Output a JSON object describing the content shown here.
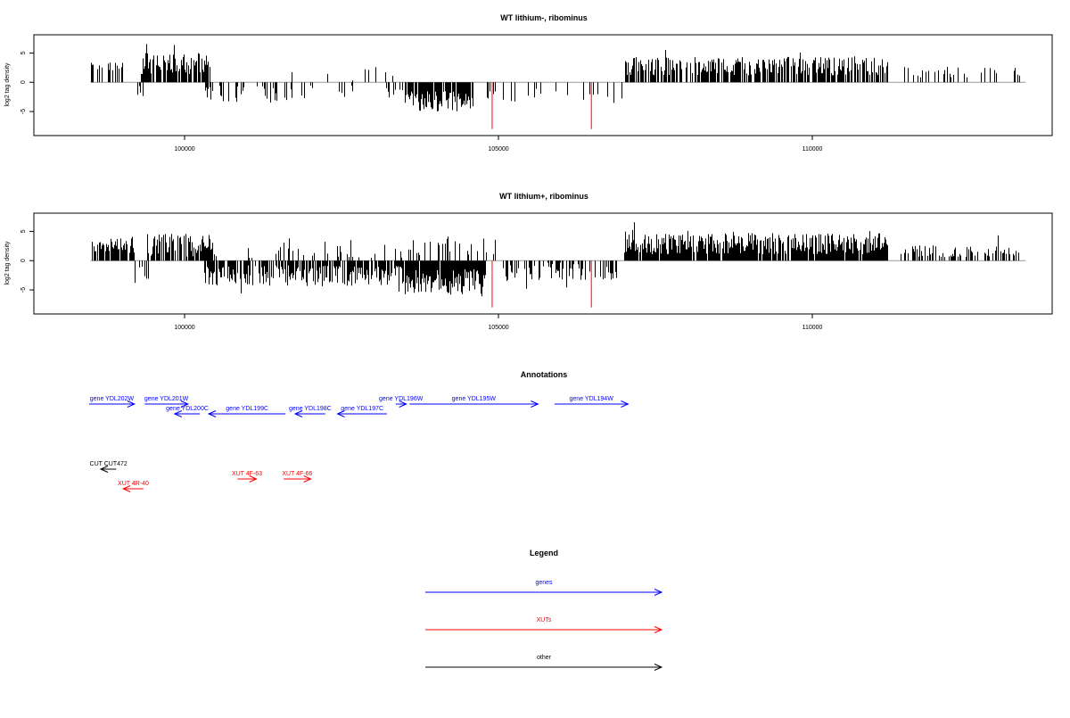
{
  "chart_data": [
    {
      "type": "bar",
      "title": "WT lithium-, ribominus",
      "ylabel": "log2 tag density",
      "xlim": [
        98000,
        113800
      ],
      "ylim": [
        -8.5,
        7.5
      ],
      "xticks": [
        100000,
        105000,
        110000
      ],
      "xtick_labels": [
        "100000",
        "105000",
        "110000"
      ],
      "yticks": [
        5,
        0,
        -5
      ],
      "ytick_labels": [
        "5",
        "0",
        "-5"
      ],
      "baseline": {
        "from": 98500,
        "to": 113400,
        "y": 0
      },
      "highlight_color": "#ff0000",
      "highlights": [
        {
          "x": 104900,
          "y": -8
        },
        {
          "x": 106480,
          "y": -8
        }
      ],
      "segments": [
        {
          "from": 98500,
          "to": 99100,
          "sign": 1,
          "mean": 2.5,
          "amp": 1.0,
          "density": 0.35
        },
        {
          "from": 99100,
          "to": 99400,
          "sign": -1,
          "mean": 1.5,
          "amp": 1.0,
          "density": 0.25
        },
        {
          "from": 99300,
          "to": 100400,
          "sign": 1,
          "mean": 3.2,
          "amp": 1.8,
          "density": 0.85
        },
        {
          "from": 100300,
          "to": 101700,
          "sign": -1,
          "mean": 2.0,
          "amp": 1.5,
          "density": 0.35
        },
        {
          "from": 101700,
          "to": 103500,
          "sign": 1,
          "mean": 1.5,
          "amp": 1.5,
          "density": 0.08
        },
        {
          "from": 101700,
          "to": 103500,
          "sign": -1,
          "mean": 1.5,
          "amp": 1.2,
          "density": 0.1
        },
        {
          "from": 103500,
          "to": 104600,
          "sign": -1,
          "mean": 3.3,
          "amp": 1.8,
          "density": 0.85
        },
        {
          "from": 104600,
          "to": 106700,
          "sign": -1,
          "mean": 2.2,
          "amp": 1.2,
          "density": 0.12
        },
        {
          "from": 106700,
          "to": 107000,
          "sign": -1,
          "mean": 2.5,
          "amp": 1.5,
          "density": 0.3
        },
        {
          "from": 107000,
          "to": 111200,
          "sign": 1,
          "mean": 2.8,
          "amp": 1.6,
          "density": 0.75
        },
        {
          "from": 111200,
          "to": 113300,
          "sign": 1,
          "mean": 1.8,
          "amp": 1.0,
          "density": 0.15
        }
      ]
    },
    {
      "type": "bar",
      "title": "WT lithium+, ribominus",
      "ylabel": "log2 tag density",
      "xlim": [
        98000,
        113800
      ],
      "ylim": [
        -8.5,
        7.5
      ],
      "xticks": [
        100000,
        105000,
        110000
      ],
      "xtick_labels": [
        "100000",
        "105000",
        "110000"
      ],
      "yticks": [
        5,
        0,
        -5
      ],
      "ytick_labels": [
        "5",
        "0",
        "-5"
      ],
      "baseline": {
        "from": 98500,
        "to": 113400,
        "y": 0
      },
      "highlight_color": "#ff0000",
      "highlights": [
        {
          "x": 104900,
          "y": -8
        },
        {
          "x": 106480,
          "y": -8
        }
      ],
      "segments": [
        {
          "from": 98500,
          "to": 99200,
          "sign": 1,
          "mean": 2.5,
          "amp": 1.3,
          "density": 0.7
        },
        {
          "from": 99200,
          "to": 99600,
          "sign": -1,
          "mean": 2.0,
          "amp": 1.8,
          "density": 0.3
        },
        {
          "from": 99400,
          "to": 100500,
          "sign": 1,
          "mean": 2.6,
          "amp": 2.0,
          "density": 0.75
        },
        {
          "from": 100300,
          "to": 103500,
          "sign": -1,
          "mean": 2.6,
          "amp": 1.8,
          "density": 0.75
        },
        {
          "from": 101000,
          "to": 103500,
          "sign": 1,
          "mean": 1.8,
          "amp": 1.5,
          "density": 0.15
        },
        {
          "from": 103500,
          "to": 104800,
          "sign": -1,
          "mean": 3.6,
          "amp": 2.2,
          "density": 0.95
        },
        {
          "from": 103500,
          "to": 105000,
          "sign": 1,
          "mean": 2.3,
          "amp": 1.6,
          "density": 0.25
        },
        {
          "from": 105000,
          "to": 106900,
          "sign": -1,
          "mean": 1.8,
          "amp": 1.5,
          "density": 0.45
        },
        {
          "from": 107000,
          "to": 111200,
          "sign": 1,
          "mean": 2.9,
          "amp": 1.8,
          "density": 0.92
        },
        {
          "from": 111400,
          "to": 113300,
          "sign": 1,
          "mean": 1.6,
          "amp": 1.0,
          "density": 0.5
        }
      ]
    }
  ],
  "annotations": {
    "title": "Annotations",
    "items": [
      {
        "label": "gene YDL202W",
        "kind": "gene",
        "from": 99285,
        "to": 100985,
        "dir": 1,
        "row": 0
      },
      {
        "label": "gene YDL201W",
        "kind": "gene",
        "from": 101370,
        "to": 102990,
        "dir": 1,
        "row": 0
      },
      {
        "label": "gene YDL200C",
        "kind": "gene",
        "from": 102490,
        "to": 103440,
        "dir": -1,
        "row": 1
      },
      {
        "label": "gene YDL199C",
        "kind": "gene",
        "from": 103770,
        "to": 106650,
        "dir": -1,
        "row": 1
      },
      {
        "label": "gene YDL198C",
        "kind": "gene",
        "from": 107010,
        "to": 108140,
        "dir": -1,
        "row": 1
      },
      {
        "label": "gene YDL197C",
        "kind": "gene",
        "from": 108600,
        "to": 110450,
        "dir": -1,
        "row": 1
      },
      {
        "label": "gene YDL196W",
        "kind": "gene",
        "from": 110780,
        "to": 111180,
        "dir": 1,
        "row": 0
      },
      {
        "label": "gene YDL195W",
        "kind": "gene",
        "from": 111300,
        "to": 116120,
        "dir": 1,
        "row": 0
      },
      {
        "label": "gene YDL194W",
        "kind": "gene",
        "from": 116740,
        "to": 119500,
        "dir": 1,
        "row": 0
      },
      {
        "label": "CUT CUT472",
        "kind": "other",
        "from": 99720,
        "to": 100300,
        "dir": -1,
        "row": 0
      },
      {
        "label": "XUT 4R-40",
        "kind": "xut",
        "from": 100560,
        "to": 101320,
        "dir": -1,
        "row": 1
      },
      {
        "label": "XUT 4F-63",
        "kind": "xut",
        "from": 104850,
        "to": 105560,
        "dir": 1,
        "row": 0
      },
      {
        "label": "XUT 4F-66",
        "kind": "xut",
        "from": 106580,
        "to": 107600,
        "dir": 1,
        "row": 0
      }
    ]
  },
  "legend": {
    "title": "Legend",
    "items": [
      {
        "label": "genes",
        "color": "#0000ff"
      },
      {
        "label": "XUTs",
        "color": "#ff0000"
      },
      {
        "label": "other",
        "color": "#000000"
      }
    ]
  },
  "colors": {
    "gene": "#0000ff",
    "xut": "#ff0000",
    "other": "#000000",
    "baseline": "#999999"
  }
}
